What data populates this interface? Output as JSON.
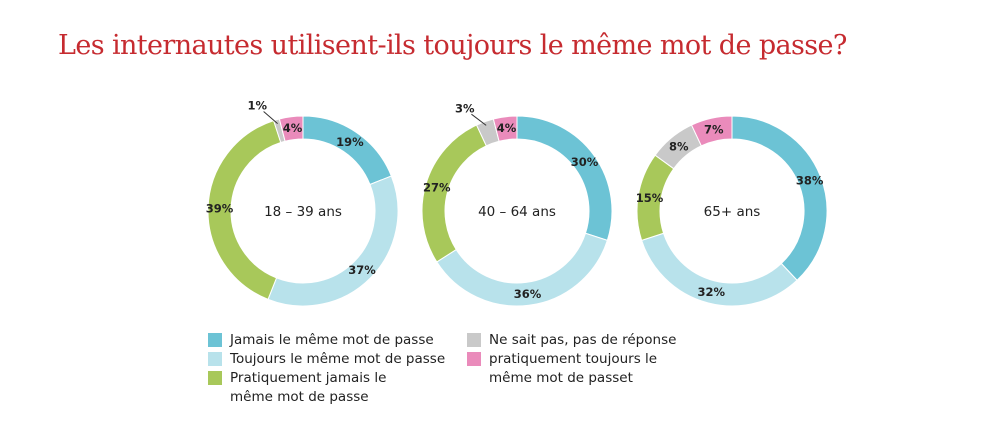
{
  "title": "Les internautes utilisent-ils toujours le même mot de passe?",
  "chart_data": [
    {
      "type": "pie",
      "donut": true,
      "center_label": "18 – 39 ans",
      "categories": [
        "Jamais le même mot de passe",
        "Toujours le même mot de passe",
        "Pratiquement jamais le même mot de passe",
        "Ne sait pas, pas de réponse",
        "pratiquement toujours le même mot de passet"
      ],
      "values": [
        19,
        37,
        39,
        1,
        4
      ],
      "labels": [
        "19%",
        "37%",
        "39%",
        "1%",
        "4%"
      ]
    },
    {
      "type": "pie",
      "donut": true,
      "center_label": "40 – 64 ans",
      "categories": [
        "Jamais le même mot de passe",
        "Toujours le même mot de passe",
        "Pratiquement jamais le même mot de passe",
        "Ne sait pas, pas de réponse",
        "pratiquement toujours le même mot de passet"
      ],
      "values": [
        30,
        36,
        27,
        3,
        4
      ],
      "labels": [
        "30%",
        "36%",
        "27%",
        "3%",
        "4%"
      ]
    },
    {
      "type": "pie",
      "donut": true,
      "center_label": "65+ ans",
      "categories": [
        "Jamais le même mot de passe",
        "Toujours le même mot de passe",
        "Pratiquement jamais le même mot de passe",
        "Ne sait pas, pas de réponse",
        "pratiquement toujours le même mot de passet"
      ],
      "values": [
        38,
        32,
        15,
        8,
        7
      ],
      "labels": [
        "38%",
        "32%",
        "15%",
        "8%",
        "7%"
      ]
    }
  ],
  "colors": [
    "#6cc3d5",
    "#b8e2eb",
    "#a8c85a",
    "#c9c9c9",
    "#ea8bbb"
  ],
  "legend": [
    {
      "label": "Jamais le même mot de passe",
      "color": "#6cc3d5"
    },
    {
      "label": "Toujours le même mot de passe",
      "color": "#b8e2eb"
    },
    {
      "label": "Pratiquement jamais le même mot de passe",
      "color": "#a8c85a"
    },
    {
      "label": "Ne sait pas, pas de réponse",
      "color": "#c9c9c9"
    },
    {
      "label": "pratiquement toujours le même mot de passet",
      "color": "#ea8bbb"
    }
  ]
}
